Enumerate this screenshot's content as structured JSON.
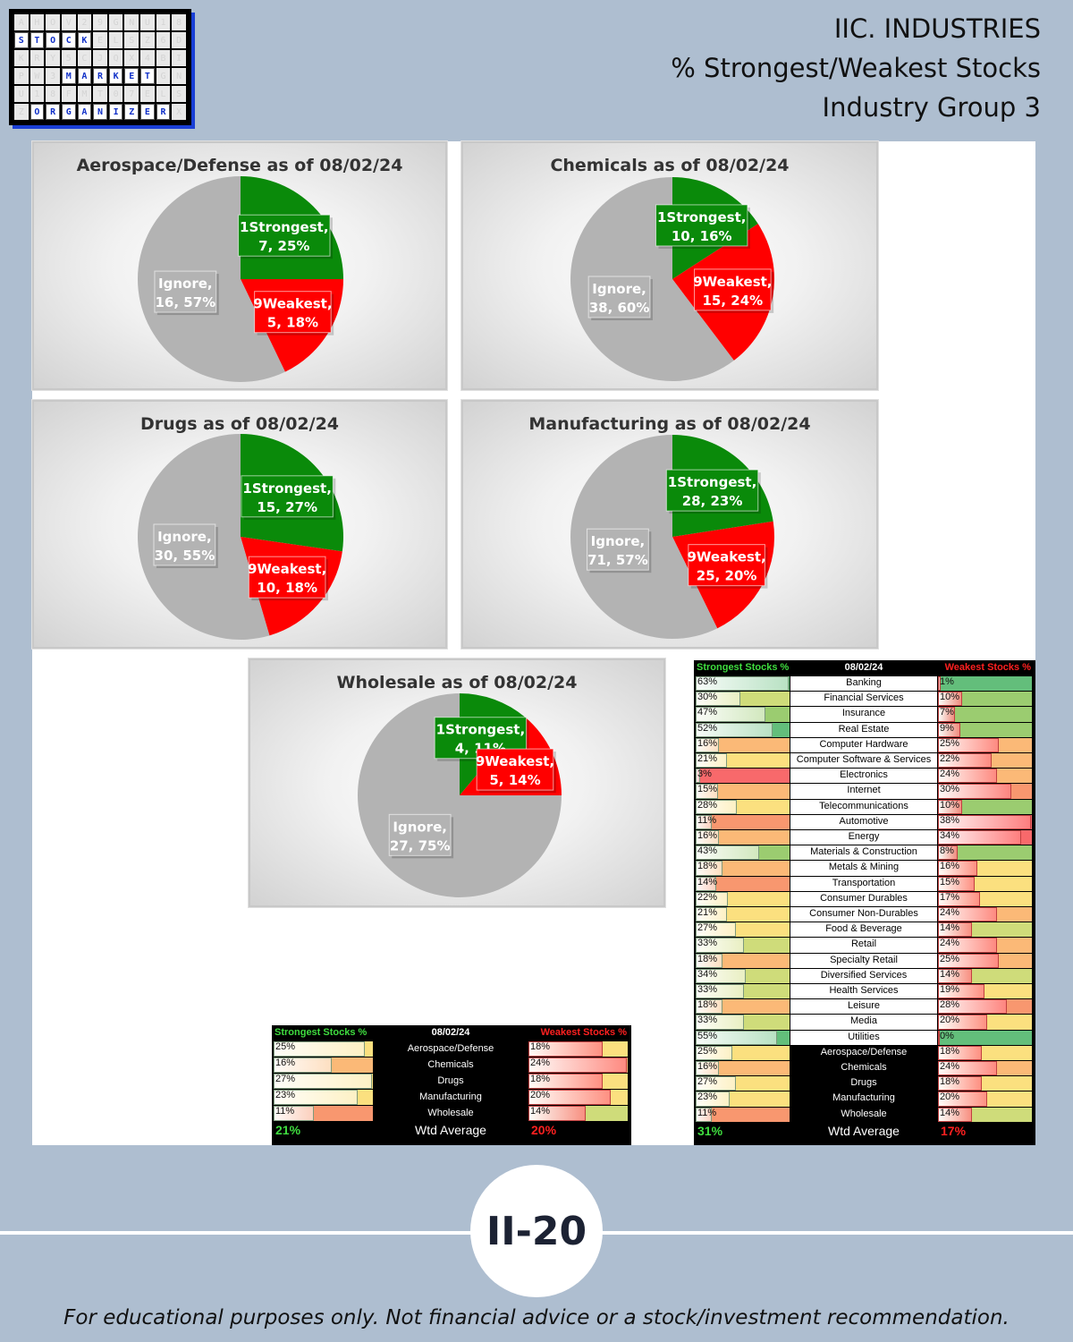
{
  "header": {
    "line1": "IIC. INDUSTRIES",
    "line2": "% Strongest/Weakest Stocks",
    "line3": "Industry Group 3"
  },
  "logo": {
    "row_stock": "STOCK",
    "row_market": "MARKET",
    "row_organizer": "ORGANIZER"
  },
  "colors": {
    "strongest": "#0a8a0a",
    "weakest": "#ff0000",
    "ignore": "#b3b3b3"
  },
  "chart_data": [
    {
      "type": "pie",
      "title": "Aerospace/Defense as of 08/02/24",
      "slices": [
        {
          "label": "1Strongest",
          "value": 7,
          "pct": "25%"
        },
        {
          "label": "9Weakest",
          "value": 5,
          "pct": "18%"
        },
        {
          "label": "Ignore",
          "value": 16,
          "pct": "57%"
        }
      ]
    },
    {
      "type": "pie",
      "title": "Chemicals as of 08/02/24",
      "slices": [
        {
          "label": "1Strongest",
          "value": 10,
          "pct": "16%"
        },
        {
          "label": "9Weakest",
          "value": 15,
          "pct": "24%"
        },
        {
          "label": "Ignore",
          "value": 38,
          "pct": "60%"
        }
      ]
    },
    {
      "type": "pie",
      "title": "Drugs as of 08/02/24",
      "slices": [
        {
          "label": "1Strongest",
          "value": 15,
          "pct": "27%"
        },
        {
          "label": "9Weakest",
          "value": 10,
          "pct": "18%"
        },
        {
          "label": "Ignore",
          "value": 30,
          "pct": "55%"
        }
      ]
    },
    {
      "type": "pie",
      "title": "Manufacturing as of 08/02/24",
      "slices": [
        {
          "label": "1Strongest",
          "value": 28,
          "pct": "23%"
        },
        {
          "label": "9Weakest",
          "value": 25,
          "pct": "20%"
        },
        {
          "label": "Ignore",
          "value": 71,
          "pct": "57%"
        }
      ]
    },
    {
      "type": "pie",
      "title": "Wholesale as of 08/02/24",
      "slices": [
        {
          "label": "1Strongest",
          "value": 4,
          "pct": "11%"
        },
        {
          "label": "9Weakest",
          "value": 5,
          "pct": "14%"
        },
        {
          "label": "Ignore",
          "value": 27,
          "pct": "75%"
        }
      ]
    },
    {
      "type": "table",
      "header": {
        "left": "Strongest Stocks %",
        "middle": "08/02/24",
        "right": "Weakest Stocks %"
      },
      "rows": [
        {
          "name": "Aerospace/Defense",
          "strong": 25,
          "strong_label": "25%",
          "weak": 18,
          "weak_label": "18%"
        },
        {
          "name": "Chemicals",
          "strong": 16,
          "strong_label": "16%",
          "weak": 24,
          "weak_label": "24%"
        },
        {
          "name": "Drugs",
          "strong": 27,
          "strong_label": "27%",
          "weak": 18,
          "weak_label": "18%"
        },
        {
          "name": "Manufacturing",
          "strong": 23,
          "strong_label": "23%",
          "weak": 20,
          "weak_label": "20%"
        },
        {
          "name": "Wholesale",
          "strong": 11,
          "strong_label": "11%",
          "weak": 14,
          "weak_label": "14%"
        }
      ],
      "footer": {
        "left": "21%",
        "middle": "Wtd Average",
        "right": "20%"
      }
    },
    {
      "type": "table",
      "header": {
        "left": "Strongest Stocks %",
        "middle": "08/02/24",
        "right": "Weakest Stocks %"
      },
      "rows": [
        {
          "name": "Banking",
          "strong": 63,
          "strong_label": "63%",
          "weak": 1,
          "weak_label": "1%"
        },
        {
          "name": "Financial Services",
          "strong": 30,
          "strong_label": "30%",
          "weak": 10,
          "weak_label": "10%"
        },
        {
          "name": "Insurance",
          "strong": 47,
          "strong_label": "47%",
          "weak": 7,
          "weak_label": "7%"
        },
        {
          "name": "Real Estate",
          "strong": 52,
          "strong_label": "52%",
          "weak": 9,
          "weak_label": "9%"
        },
        {
          "name": "Computer Hardware",
          "strong": 16,
          "strong_label": "16%",
          "weak": 25,
          "weak_label": "25%"
        },
        {
          "name": "Computer Software & Services",
          "strong": 21,
          "strong_label": "21%",
          "weak": 22,
          "weak_label": "22%"
        },
        {
          "name": "Electronics",
          "strong": 3,
          "strong_label": "3%",
          "weak": 24,
          "weak_label": "24%"
        },
        {
          "name": "Internet",
          "strong": 15,
          "strong_label": "15%",
          "weak": 30,
          "weak_label": "30%"
        },
        {
          "name": "Telecommunications",
          "strong": 28,
          "strong_label": "28%",
          "weak": 10,
          "weak_label": "10%"
        },
        {
          "name": "Automotive",
          "strong": 11,
          "strong_label": "11%",
          "weak": 38,
          "weak_label": "38%"
        },
        {
          "name": "Energy",
          "strong": 16,
          "strong_label": "16%",
          "weak": 34,
          "weak_label": "34%"
        },
        {
          "name": "Materials & Construction",
          "strong": 43,
          "strong_label": "43%",
          "weak": 8,
          "weak_label": "8%"
        },
        {
          "name": "Metals & Mining",
          "strong": 18,
          "strong_label": "18%",
          "weak": 16,
          "weak_label": "16%"
        },
        {
          "name": "Transportation",
          "strong": 14,
          "strong_label": "14%",
          "weak": 15,
          "weak_label": "15%"
        },
        {
          "name": "Consumer Durables",
          "strong": 22,
          "strong_label": "22%",
          "weak": 17,
          "weak_label": "17%"
        },
        {
          "name": "Consumer Non-Durables",
          "strong": 21,
          "strong_label": "21%",
          "weak": 24,
          "weak_label": "24%"
        },
        {
          "name": "Food & Beverage",
          "strong": 27,
          "strong_label": "27%",
          "weak": 14,
          "weak_label": "14%"
        },
        {
          "name": "Retail",
          "strong": 33,
          "strong_label": "33%",
          "weak": 24,
          "weak_label": "24%"
        },
        {
          "name": "Specialty Retail",
          "strong": 18,
          "strong_label": "18%",
          "weak": 25,
          "weak_label": "25%"
        },
        {
          "name": "Diversified Services",
          "strong": 34,
          "strong_label": "34%",
          "weak": 14,
          "weak_label": "14%"
        },
        {
          "name": "Health Services",
          "strong": 33,
          "strong_label": "33%",
          "weak": 19,
          "weak_label": "19%"
        },
        {
          "name": "Leisure",
          "strong": 18,
          "strong_label": "18%",
          "weak": 28,
          "weak_label": "28%"
        },
        {
          "name": "Media",
          "strong": 33,
          "strong_label": "33%",
          "weak": 20,
          "weak_label": "20%"
        },
        {
          "name": "Utilities",
          "strong": 55,
          "strong_label": "55%",
          "weak": 0,
          "weak_label": "0%"
        },
        {
          "name": "Aerospace/Defense",
          "strong": 25,
          "strong_label": "25%",
          "weak": 18,
          "weak_label": "18%",
          "dark": true
        },
        {
          "name": "Chemicals",
          "strong": 16,
          "strong_label": "16%",
          "weak": 24,
          "weak_label": "24%",
          "dark": true
        },
        {
          "name": "Drugs",
          "strong": 27,
          "strong_label": "27%",
          "weak": 18,
          "weak_label": "18%",
          "dark": true
        },
        {
          "name": "Manufacturing",
          "strong": 23,
          "strong_label": "23%",
          "weak": 20,
          "weak_label": "20%",
          "dark": true
        },
        {
          "name": "Wholesale",
          "strong": 11,
          "strong_label": "11%",
          "weak": 14,
          "weak_label": "14%",
          "dark": true
        }
      ],
      "footer": {
        "left": "31%",
        "middle": "Wtd Average",
        "right": "17%"
      }
    }
  ],
  "page_number": "II-20",
  "disclaimer": "For educational purposes only. Not financial advice or a stock/investment recommendation."
}
